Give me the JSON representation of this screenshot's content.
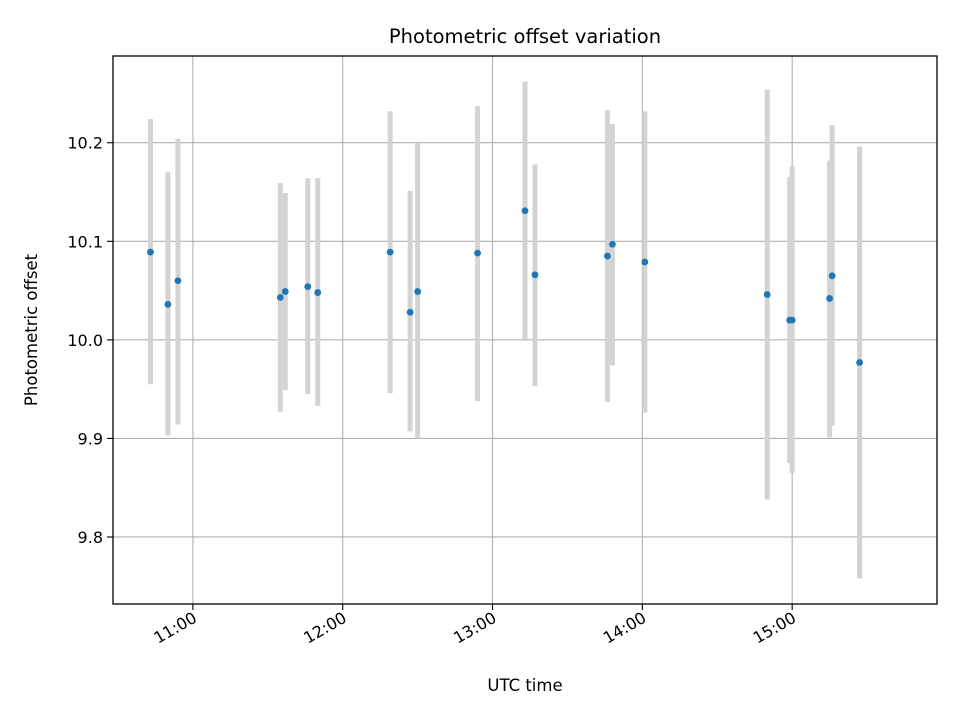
{
  "chart_data": {
    "type": "scatter",
    "title": "Photometric offset variation",
    "xlabel": "UTC time",
    "ylabel": "Photometric offset",
    "x_ticks": [
      "11:00",
      "12:00",
      "13:00",
      "14:00",
      "15:00"
    ],
    "y_ticks": [
      9.8,
      9.9,
      10.0,
      10.1,
      10.2
    ],
    "xlim": [
      "10:28",
      "15:58"
    ],
    "ylim": [
      9.732,
      10.288
    ],
    "grid": true,
    "legend": "none",
    "marker_color": "#1f77b4",
    "errorbar_color": "#d3d3d3",
    "points": [
      {
        "time": "10:43",
        "value": 10.089,
        "low": 9.955,
        "high": 10.224
      },
      {
        "time": "10:50",
        "value": 10.036,
        "low": 9.903,
        "high": 10.17
      },
      {
        "time": "10:54",
        "value": 10.06,
        "low": 9.914,
        "high": 10.204
      },
      {
        "time": "11:35",
        "value": 10.043,
        "low": 9.927,
        "high": 10.159
      },
      {
        "time": "11:37",
        "value": 10.049,
        "low": 9.949,
        "high": 10.149
      },
      {
        "time": "11:46",
        "value": 10.054,
        "low": 9.945,
        "high": 10.164
      },
      {
        "time": "11:50",
        "value": 10.048,
        "low": 9.933,
        "high": 10.164
      },
      {
        "time": "12:19",
        "value": 10.089,
        "low": 9.946,
        "high": 10.232
      },
      {
        "time": "12:27",
        "value": 10.028,
        "low": 9.907,
        "high": 10.151
      },
      {
        "time": "12:30",
        "value": 10.049,
        "low": 9.9,
        "high": 10.2
      },
      {
        "time": "12:54",
        "value": 10.088,
        "low": 9.938,
        "high": 10.237
      },
      {
        "time": "13:13",
        "value": 10.131,
        "low": 10.001,
        "high": 10.262
      },
      {
        "time": "13:17",
        "value": 10.066,
        "low": 9.953,
        "high": 10.178
      },
      {
        "time": "13:46",
        "value": 10.085,
        "low": 9.937,
        "high": 10.233
      },
      {
        "time": "13:48",
        "value": 10.097,
        "low": 9.974,
        "high": 10.219
      },
      {
        "time": "14:01",
        "value": 10.079,
        "low": 9.926,
        "high": 10.232
      },
      {
        "time": "14:50",
        "value": 10.046,
        "low": 9.838,
        "high": 10.254
      },
      {
        "time": "14:59",
        "value": 10.02,
        "low": 9.875,
        "high": 10.165
      },
      {
        "time": "15:00",
        "value": 10.02,
        "low": 9.865,
        "high": 10.176
      },
      {
        "time": "15:15",
        "value": 10.042,
        "low": 9.901,
        "high": 10.182
      },
      {
        "time": "15:16",
        "value": 10.065,
        "low": 9.913,
        "high": 10.218
      },
      {
        "time": "15:27",
        "value": 9.977,
        "low": 9.758,
        "high": 10.196
      }
    ]
  }
}
